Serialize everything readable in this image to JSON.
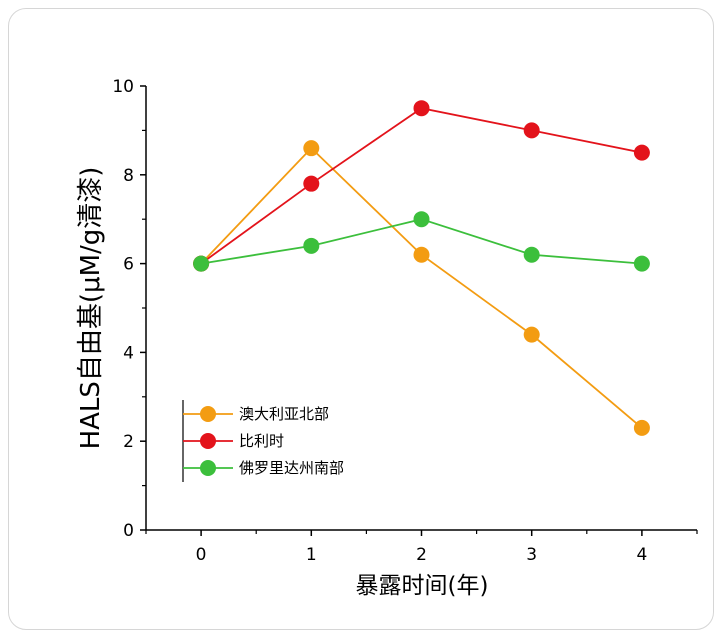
{
  "chart_data": {
    "type": "line",
    "title": "",
    "xlabel": "暴露时间(年)",
    "ylabel": "HALS自由基(μM/g清漆)",
    "x": [
      0,
      1,
      2,
      3,
      4
    ],
    "xlim": [
      -0.5,
      4.5
    ],
    "ylim": [
      0,
      10
    ],
    "xticks": [
      "0",
      "1",
      "2",
      "3",
      "4"
    ],
    "yticks": [
      "0",
      "2",
      "4",
      "6",
      "8",
      "10"
    ],
    "grid": false,
    "legend_position": "bottom-left",
    "series": [
      {
        "name": "澳大利亚北部",
        "color": "#f39c12",
        "values": [
          6.0,
          8.6,
          6.2,
          4.4,
          2.3
        ]
      },
      {
        "name": "比利时",
        "color": "#e3131b",
        "values": [
          6.0,
          7.8,
          9.5,
          9.0,
          8.5
        ]
      },
      {
        "name": "佛罗里达州南部",
        "color": "#3cbf3c",
        "values": [
          6.0,
          6.4,
          7.0,
          6.2,
          6.0
        ]
      }
    ]
  }
}
